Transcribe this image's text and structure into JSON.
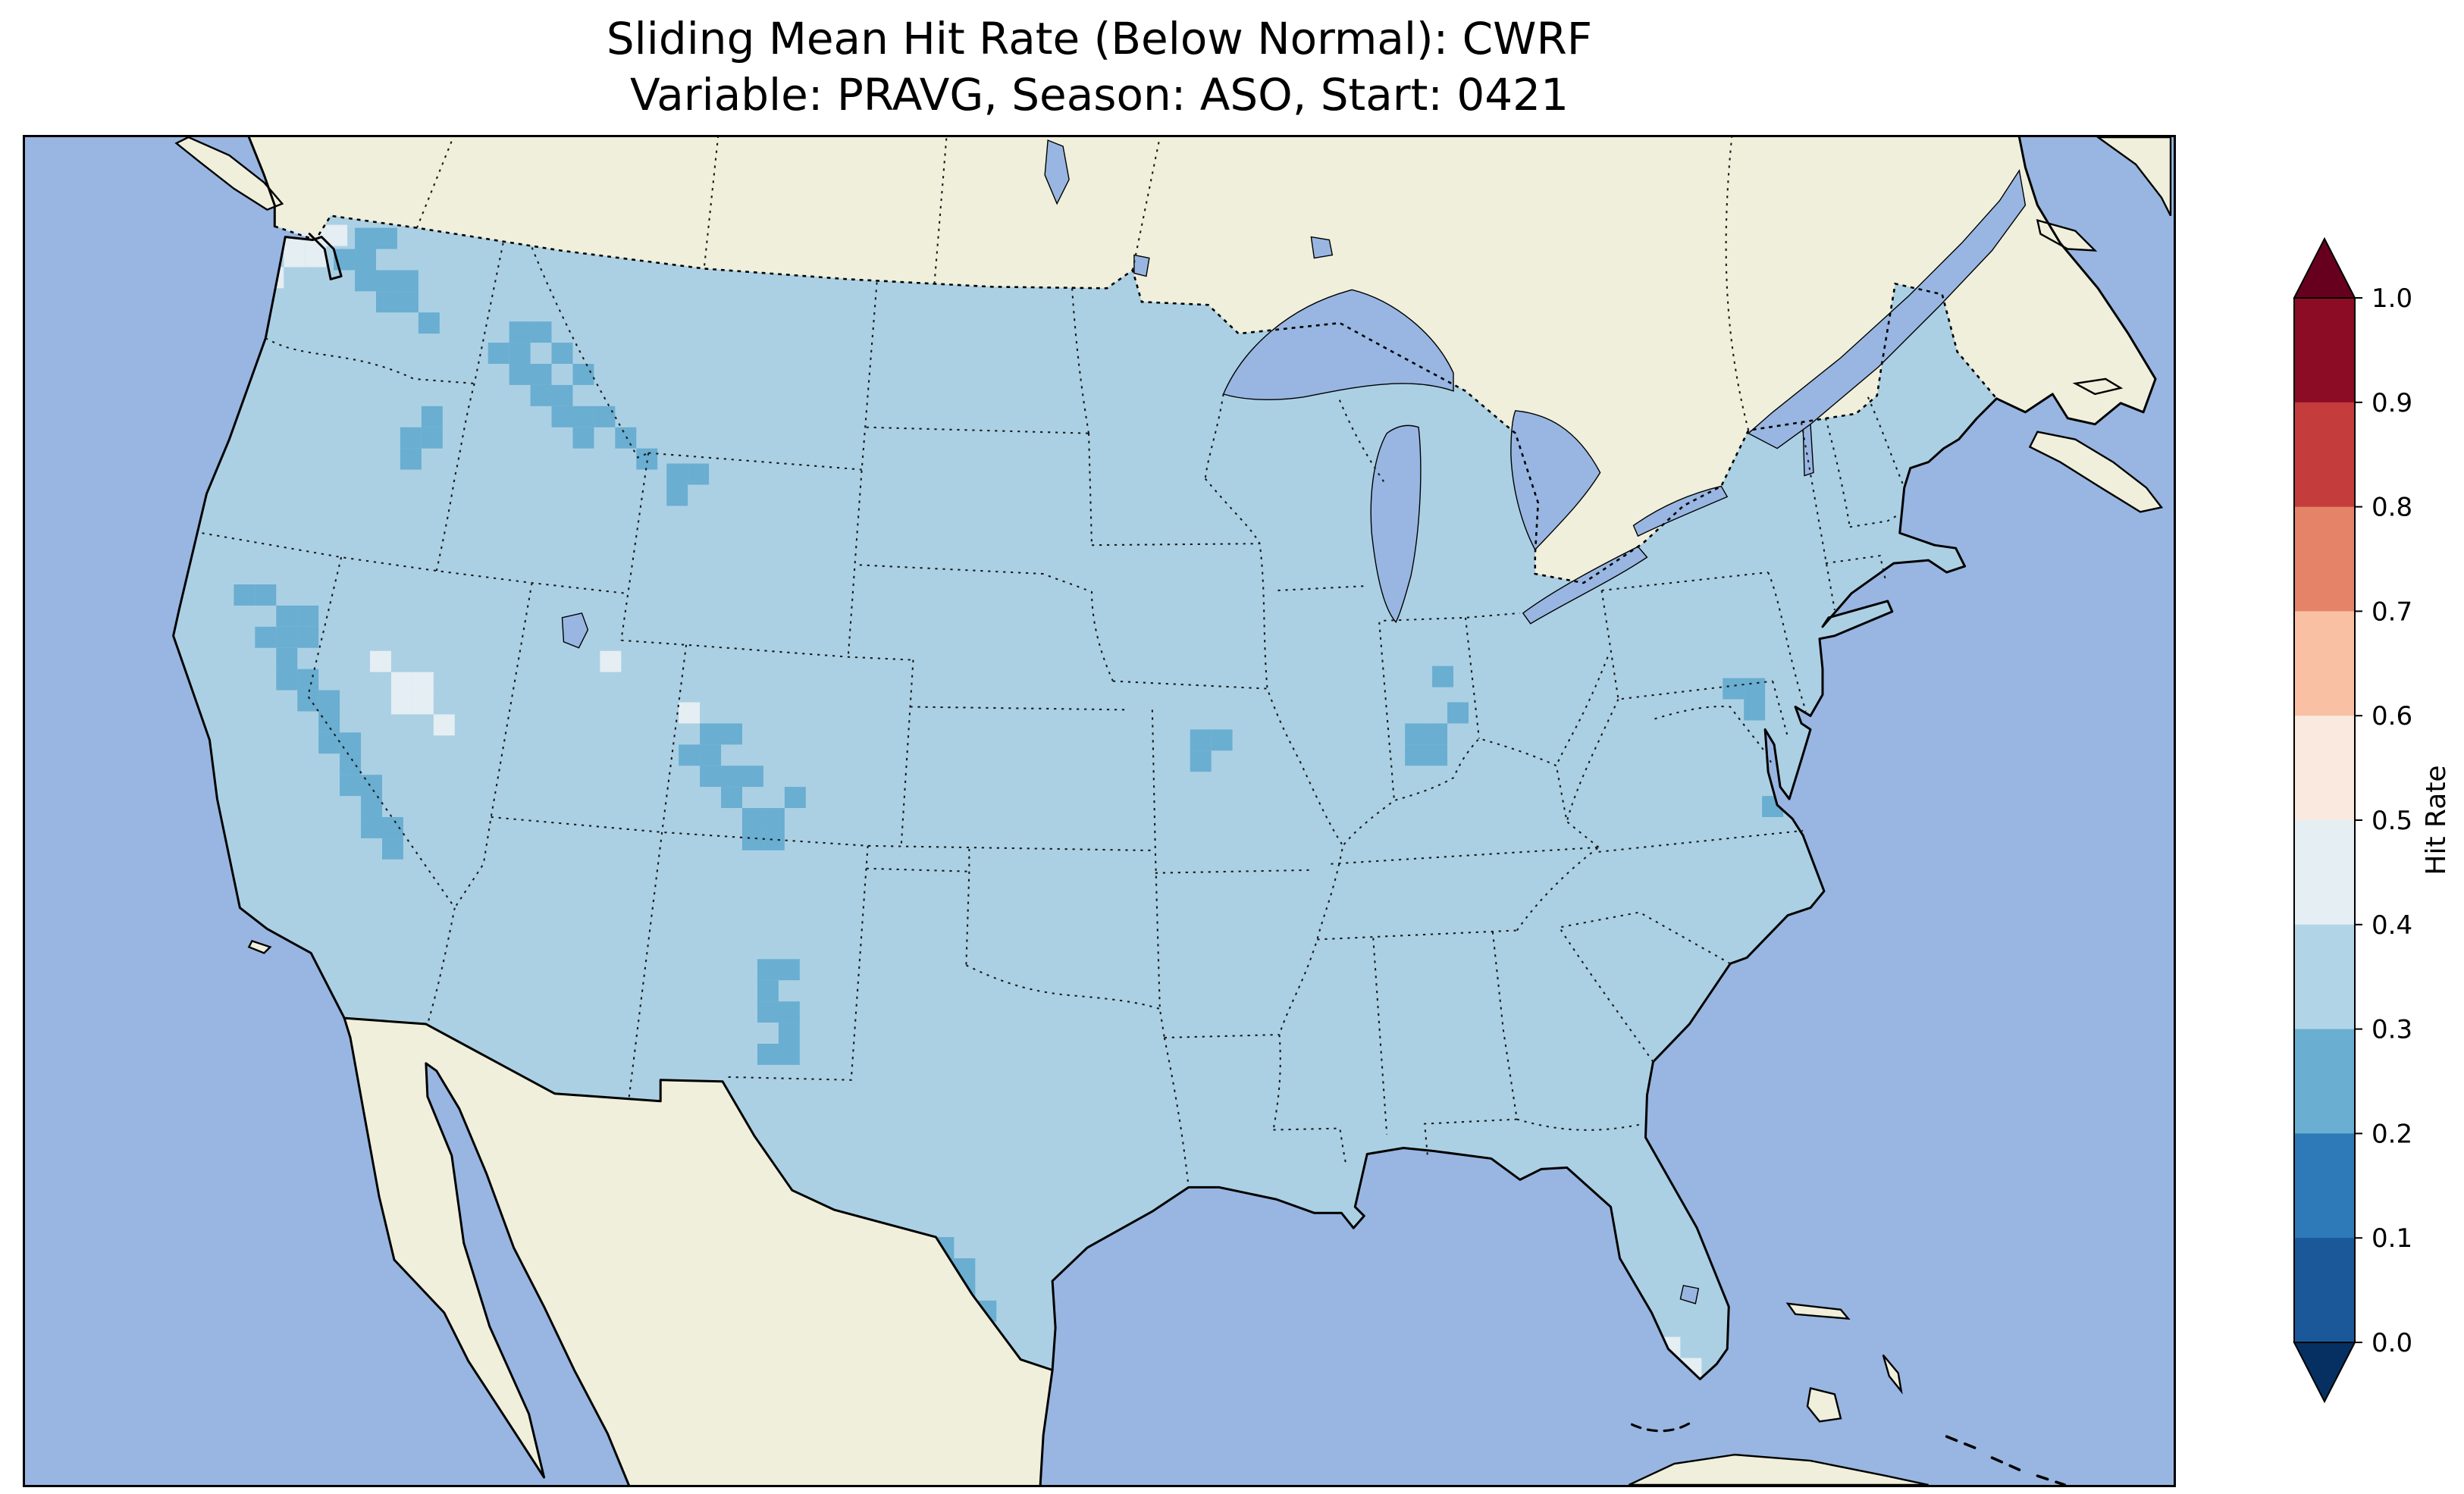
{
  "chart_data": {
    "type": "heatmap",
    "title": "Sliding Mean Hit Rate (Below Normal): CWRF",
    "subtitle": "Variable: PRAVG, Season: ASO, Start: 0421",
    "model": "CWRF",
    "variable": "PRAVG",
    "season": "ASO",
    "start": "0421",
    "category": "Below Normal",
    "region": "Continental United States with surrounding Canada, Mexico, Gulf of Mexico and Atlantic",
    "colorbar": {
      "label": "Hit Rate",
      "orientation": "vertical",
      "extend": "both",
      "tick_labels": [
        "1.0",
        "0.9",
        "0.8",
        "0.7",
        "0.6",
        "0.5",
        "0.4",
        "0.3",
        "0.2",
        "0.1",
        "0.0"
      ],
      "bin_edges": [
        0.0,
        0.1,
        0.2,
        0.3,
        0.4,
        0.5,
        0.6,
        0.7,
        0.8,
        0.9,
        1.0
      ],
      "bin_colors_top_to_bottom": [
        "#8d0c25",
        "#c43c3c",
        "#e58368",
        "#f9c0a4",
        "#fae9df",
        "#e4eef3",
        "#b1d5e7",
        "#6aaed1",
        "#2e7ab8",
        "#1b5899"
      ],
      "over_color": "#67001f",
      "under_color": "#053061"
    },
    "map_summary": {
      "dominant_bin": "0.3-0.4",
      "dominant_color": "#abd0e4",
      "low_value_bin": "0.2-0.3",
      "low_value_regions": [
        "Washington Cascades",
        "Northern Rockies (Idaho/Montana)",
        "Eastern Oregon",
        "Sierra Nevada and coastal California",
        "Utah/Colorado Rockies",
        "Southern New Mexico",
        "South Texas border",
        "Scattered Midwest cells (Missouri, Illinois/Indiana, Ohio)",
        "Upper Chesapeake area"
      ],
      "high_value_bin": "0.4-0.5",
      "high_value_regions": [
        "Northwest Washington",
        "Western Nevada",
        "Central Utah",
        "South Florida"
      ]
    }
  },
  "map_render": {
    "colors": {
      "ocean": "#98b6e1",
      "land": "#efefdb",
      "us_base": "#abd0e4",
      "cell_low": "#6aaed1",
      "cell_high": "#e4eef3"
    },
    "cell_size": 14,
    "low_cells": [
      [
        218,
        60
      ],
      [
        232,
        60
      ],
      [
        204,
        74
      ],
      [
        218,
        74
      ],
      [
        232,
        88
      ],
      [
        246,
        88
      ],
      [
        218,
        88
      ],
      [
        232,
        102
      ],
      [
        246,
        102
      ],
      [
        260,
        116
      ],
      [
        320,
        122
      ],
      [
        334,
        122
      ],
      [
        306,
        136
      ],
      [
        320,
        136
      ],
      [
        348,
        136
      ],
      [
        334,
        150
      ],
      [
        362,
        150
      ],
      [
        320,
        150
      ],
      [
        348,
        164
      ],
      [
        334,
        164
      ],
      [
        376,
        178
      ],
      [
        362,
        178
      ],
      [
        348,
        178
      ],
      [
        362,
        192
      ],
      [
        390,
        192
      ],
      [
        404,
        206
      ],
      [
        248,
        192
      ],
      [
        262,
        192
      ],
      [
        248,
        206
      ],
      [
        262,
        178
      ],
      [
        424,
        216
      ],
      [
        424,
        230
      ],
      [
        438,
        216
      ],
      [
        166,
        310
      ],
      [
        180,
        310
      ],
      [
        166,
        324
      ],
      [
        152,
        324
      ],
      [
        180,
        324
      ],
      [
        166,
        338
      ],
      [
        180,
        352
      ],
      [
        166,
        352
      ],
      [
        194,
        366
      ],
      [
        180,
        366
      ],
      [
        194,
        380
      ],
      [
        208,
        394
      ],
      [
        194,
        394
      ],
      [
        208,
        408
      ],
      [
        222,
        422
      ],
      [
        208,
        422
      ],
      [
        222,
        436
      ],
      [
        236,
        450
      ],
      [
        222,
        450
      ],
      [
        236,
        464
      ],
      [
        152,
        296
      ],
      [
        138,
        296
      ],
      [
        446,
        388
      ],
      [
        460,
        388
      ],
      [
        446,
        402
      ],
      [
        432,
        402
      ],
      [
        460,
        416
      ],
      [
        446,
        416
      ],
      [
        474,
        416
      ],
      [
        460,
        430
      ],
      [
        474,
        444
      ],
      [
        488,
        444
      ],
      [
        474,
        458
      ],
      [
        488,
        458
      ],
      [
        502,
        430
      ],
      [
        484,
        544
      ],
      [
        498,
        544
      ],
      [
        484,
        558
      ],
      [
        498,
        572
      ],
      [
        484,
        572
      ],
      [
        498,
        586
      ],
      [
        484,
        600
      ],
      [
        498,
        600
      ],
      [
        600,
        728
      ],
      [
        600,
        742
      ],
      [
        614,
        742
      ],
      [
        614,
        756
      ],
      [
        628,
        770
      ],
      [
        770,
        392
      ],
      [
        770,
        406
      ],
      [
        784,
        392
      ],
      [
        912,
        388
      ],
      [
        926,
        388
      ],
      [
        912,
        402
      ],
      [
        926,
        402
      ],
      [
        940,
        374
      ],
      [
        930,
        350
      ],
      [
        1122,
        358
      ],
      [
        1136,
        358
      ],
      [
        1136,
        372
      ],
      [
        1148,
        436
      ]
    ],
    "high_cells": [
      [
        185,
        58
      ],
      [
        199,
        58
      ],
      [
        185,
        72
      ],
      [
        171,
        72
      ],
      [
        171,
        58
      ],
      [
        157,
        86
      ],
      [
        242,
        354
      ],
      [
        256,
        354
      ],
      [
        242,
        368
      ],
      [
        256,
        368
      ],
      [
        270,
        382
      ],
      [
        228,
        340
      ],
      [
        380,
        340
      ],
      [
        432,
        374
      ],
      [
        1066,
        794
      ],
      [
        1080,
        794
      ],
      [
        1094,
        808
      ]
    ]
  }
}
